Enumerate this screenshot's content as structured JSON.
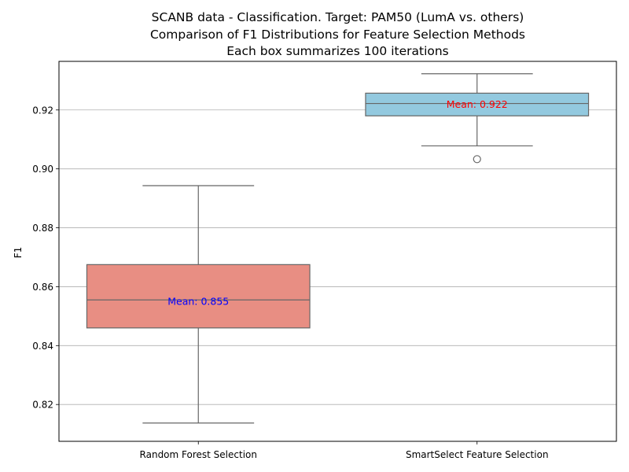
{
  "chart_data": {
    "type": "box",
    "title_lines": [
      "SCANB data - Classification. Target: PAM50 (LumA vs. others)",
      "Comparison of F1 Distributions for Feature Selection Methods",
      "Each box summarizes 100 iterations"
    ],
    "xlabel": "",
    "ylabel": "F1",
    "ylim": [
      0.8075,
      0.9365
    ],
    "yticks": [
      0.82,
      0.84,
      0.86,
      0.88,
      0.9,
      0.92
    ],
    "ytick_labels": [
      "0.82",
      "0.84",
      "0.86",
      "0.88",
      "0.90",
      "0.92"
    ],
    "grid": "horizontal",
    "categories": [
      "Random Forest Selection",
      "SmartSelect Feature Selection"
    ],
    "boxes": [
      {
        "category": "Random Forest Selection",
        "whisker_low": 0.8137,
        "q1": 0.846,
        "median": 0.8555,
        "q3": 0.8675,
        "whisker_high": 0.8943,
        "outliers": [],
        "fill_color": "#e88e83",
        "mean_label": "Mean: 0.855",
        "mean_value": 0.855,
        "mean_color": "#0000ff"
      },
      {
        "category": "SmartSelect Feature Selection",
        "whisker_low": 0.9078,
        "q1": 0.918,
        "median": 0.9222,
        "q3": 0.9257,
        "whisker_high": 0.9323,
        "outliers": [
          0.9033
        ],
        "fill_color": "#93c9df",
        "mean_label": "Mean: 0.922",
        "mean_value": 0.922,
        "mean_color": "#ff0000"
      }
    ]
  }
}
